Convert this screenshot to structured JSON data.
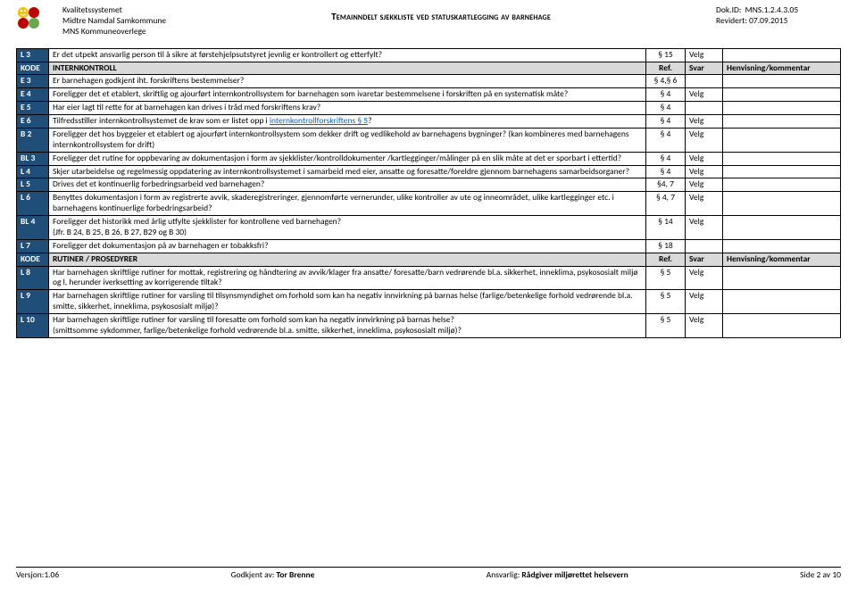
{
  "header": {
    "org_line1": "Kvalitetssystemet",
    "org_line2": "Midtre Namdal Samkommune",
    "org_line3": "MNS Kommuneoverlege",
    "title": "Temainndelt sjekkliste ved statuskartlegging av barnehage",
    "dokid_label": "Dok.ID:",
    "dokid": "MNS.1.2.4.3.05",
    "revidert_label": "Revidert:",
    "revidert": "07.09.2015"
  },
  "table": {
    "svar_default": "Velg",
    "section_ref_label": "Ref.",
    "section_svar_label": "Svar",
    "section_henv_label": "Henvisning/kommentar",
    "rows": [
      {
        "type": "row",
        "code": "L 3",
        "desc": "Er det utpekt ansvarlig person til å sikre at førstehjelpsutstyret jevnlig er kontrollert og etterfylt?",
        "ref": "§ 15",
        "svar": "Velg"
      },
      {
        "type": "section",
        "code": "KODE",
        "desc": "INTERNKONTROLL"
      },
      {
        "type": "row",
        "code": "E 3",
        "desc": "Er barnehagen godkjent iht. forskriftens bestemmelser?",
        "ref": "§ 4,§ 6",
        "svar": ""
      },
      {
        "type": "row",
        "code": "E 4",
        "desc": "Foreligger det et etablert, skriftlig og ajourført internkontrollsystem for barnehagen som ivaretar bestemmelsene i forskriften på en systematisk måte?",
        "ref": "§ 4",
        "svar": "Velg"
      },
      {
        "type": "row",
        "code": "E 5",
        "desc": "Har eier lagt til rette for at barnehagen kan drives i tråd med forskriftens krav?",
        "ref": "§ 4",
        "svar": ""
      },
      {
        "type": "row",
        "code": "E 6",
        "desc": "Tilfredsstiller internkontrollsystemet de krav som er listet opp i <span class=\"link\">internkontrollforskriftens § 5</span>?",
        "ref": "§ 4",
        "svar": "Velg"
      },
      {
        "type": "row",
        "code": "B 2",
        "desc": "Foreligger det hos byggeier et etablert og ajourført internkontrollsystem som dekker drift og vedlikehold av barnehagens bygninger? (kan kombineres med barnehagens internkontrollsystem for drift)",
        "ref": "§ 4",
        "svar": "Velg"
      },
      {
        "type": "row",
        "code": "BL 3",
        "desc": "Foreligger det rutine for oppbevaring av dokumentasjon i form av sjekklister/kontrolldokumenter /kartlegginger/målinger på en slik måte at det er sporbart i ettertid?",
        "ref": "§ 4",
        "svar": "Velg"
      },
      {
        "type": "row",
        "code": "L 4",
        "desc": "Skjer utarbeidelse og regelmessig oppdatering av internkontrollsystemet i samarbeid med eier, ansatte og foresatte/foreldre gjennom barnehagens samarbeidsorganer?",
        "ref": "§ 4",
        "svar": "Velg"
      },
      {
        "type": "row",
        "code": "L 5",
        "desc": "Drives det et kontinuerlig forbedringsarbeid ved barnehagen?",
        "ref": "§4, 7",
        "svar": "Velg"
      },
      {
        "type": "row",
        "code": "L 6",
        "desc": "Benyttes dokumentasjon i form av registrerte avvik, skaderegistreringer, gjennomførte vernerunder, ulike kontroller av ute og inneområdet, ulike kartlegginger etc. i barnehagens kontinuerlige forbedringsarbeid?",
        "ref": "§ 4, 7",
        "svar": "Velg"
      },
      {
        "type": "row",
        "code": "BL 4",
        "desc": "Foreligger det historikk med årlig utfylte sjekklister for kontrollene ved barnehagen?\n(Jfr. B 24, B 25, B 26, B 27, B29 og B 30)",
        "ref": "§ 14",
        "svar": "Velg"
      },
      {
        "type": "row",
        "code": "L 7",
        "desc": "Foreligger det dokumentasjon på av barnehagen er tobakksfri?",
        "ref": "§ 18",
        "svar": ""
      },
      {
        "type": "section",
        "code": "KODE",
        "desc": "RUTINER / PROSEDYRER"
      },
      {
        "type": "row",
        "code": "L 8",
        "desc": "Har barnehagen skriftlige rutiner for mottak, registrering og håndtering av avvik/klager fra ansatte/ foresatte/barn vedrørende bl.a. sikkerhet, inneklima, psykososialt miljø og l, herunder iverksetting av korrigerende tiltak?",
        "ref": "§ 5",
        "svar": "Velg"
      },
      {
        "type": "row",
        "code": "L 9",
        "desc": "Har barnehagen skriftlige rutiner for varsling til tilsynsmyndighet om forhold som kan ha negativ innvirkning på barnas helse (farlige/betenkelige forhold vedrørende bl.a. smitte, sikkerhet, inneklima, psykososialt miljø)?",
        "ref": "§ 5",
        "svar": "Velg"
      },
      {
        "type": "row",
        "code": "L 10",
        "desc": "Har barnehagen skriftlige rutiner for varsling til foresatte om forhold som kan ha negativ innvirkning på barnas helse?\n(smittsomme sykdommer, farlige/betenkelige forhold vedrørende bl.a. smitte, sikkerhet, inneklima, psykososialt miljø)?",
        "ref": "§ 5",
        "svar": "Velg"
      }
    ]
  },
  "footer": {
    "versjon_label": "Versjon:",
    "versjon": "1.06",
    "godkjent_label": "Godkjent av:",
    "godkjent": "Tor Brenne",
    "ansvarlig_label": "Ansvarlig:",
    "ansvarlig": "Rådgiver miljørettet helsevern",
    "side": "Side 2 av 10"
  },
  "colors": {
    "code_bg": "#1f4e79",
    "code_fg": "#ffffff",
    "section_bg": "#d9d9d9",
    "link": "#0563c1"
  }
}
